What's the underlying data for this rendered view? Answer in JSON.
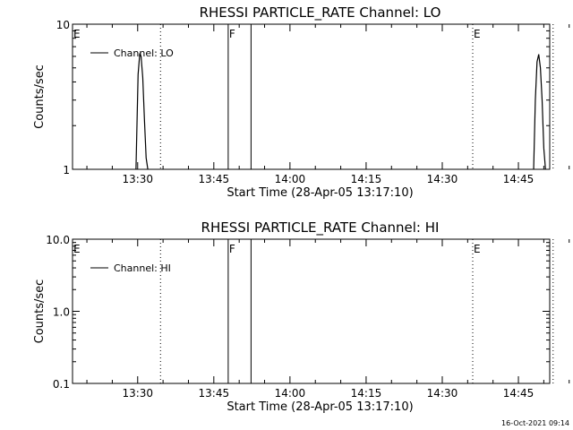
{
  "chart_data": [
    {
      "type": "line",
      "title": "RHESSI PARTICLE_RATE Channel: LO",
      "xlabel": "Start Time (28-Apr-05 13:17:10)",
      "ylabel": "Counts/sec",
      "yscale": "log",
      "ylim": [
        1,
        10
      ],
      "xlim_minutes": [
        0,
        94
      ],
      "x_ticks": [
        "13:30",
        "13:45",
        "14:00",
        "14:15",
        "14:30",
        "14:45"
      ],
      "y_ticks": [
        "1",
        "10"
      ],
      "legend": {
        "label": "Channel: LO",
        "placement": "top-left"
      },
      "grid": false,
      "series": [
        {
          "name": "Channel: LO",
          "color": "#000000",
          "x": [
            "13:29:40",
            "13:30:05",
            "13:30:25",
            "13:30:40",
            "13:31:00",
            "13:31:20",
            "13:31:40",
            "13:32:00",
            "14:48:00",
            "14:48:20",
            "14:48:40",
            "14:49:00",
            "14:49:20",
            "14:49:40",
            "14:50:00",
            "14:50:20"
          ],
          "y": [
            1,
            4.5,
            6.3,
            6.0,
            4.3,
            2.2,
            1.2,
            1,
            1,
            3.0,
            5.5,
            6.2,
            5.0,
            3.0,
            1.4,
            1
          ],
          "segments": [
            [
              0,
              7
            ],
            [
              8,
              15
            ]
          ]
        }
      ],
      "markers": [
        {
          "label": "E",
          "time": "13:17:10",
          "style": "solid"
        },
        {
          "label": "",
          "time": "13:34:30",
          "style": "dotted"
        },
        {
          "label": "F",
          "time": "13:47:50",
          "style": "solid"
        },
        {
          "label": "",
          "time": "13:52:20",
          "style": "solid"
        },
        {
          "label": "E",
          "time": "14:36:00",
          "style": "dotted"
        },
        {
          "label": "",
          "time": "14:51:50",
          "style": "dotted"
        }
      ]
    },
    {
      "type": "line",
      "title": "RHESSI PARTICLE_RATE Channel: HI",
      "xlabel": "Start Time (28-Apr-05 13:17:10)",
      "ylabel": "Counts/sec",
      "yscale": "log",
      "ylim": [
        0.1,
        10
      ],
      "xlim_minutes": [
        0,
        94
      ],
      "x_ticks": [
        "13:30",
        "13:45",
        "14:00",
        "14:15",
        "14:30",
        "14:45"
      ],
      "y_ticks": [
        "0.1",
        "1.0",
        "10.0"
      ],
      "legend": {
        "label": "Channel: HI",
        "placement": "top-left"
      },
      "grid": false,
      "series": [
        {
          "name": "Channel: HI",
          "color": "#000000",
          "x": [],
          "y": [],
          "segments": []
        }
      ],
      "markers": [
        {
          "label": "E",
          "time": "13:17:10",
          "style": "solid"
        },
        {
          "label": "",
          "time": "13:34:30",
          "style": "dotted"
        },
        {
          "label": "F",
          "time": "13:47:50",
          "style": "solid"
        },
        {
          "label": "",
          "time": "13:52:20",
          "style": "solid"
        },
        {
          "label": "E",
          "time": "14:36:00",
          "style": "dotted"
        },
        {
          "label": "",
          "time": "14:51:50",
          "style": "dotted"
        }
      ]
    }
  ],
  "footer": {
    "timestamp": "16-Oct-2021 09:14"
  }
}
